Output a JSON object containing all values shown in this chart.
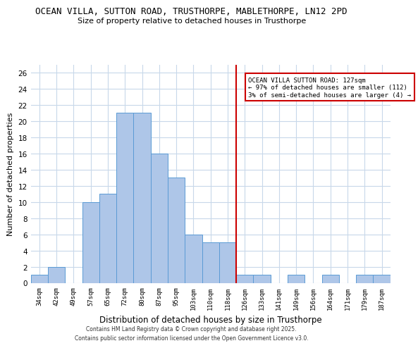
{
  "title1": "OCEAN VILLA, SUTTON ROAD, TRUSTHORPE, MABLETHORPE, LN12 2PD",
  "title2": "Size of property relative to detached houses in Trusthorpe",
  "xlabel": "Distribution of detached houses by size in Trusthorpe",
  "ylabel": "Number of detached properties",
  "bin_labels": [
    "34sqm",
    "42sqm",
    "49sqm",
    "57sqm",
    "65sqm",
    "72sqm",
    "80sqm",
    "87sqm",
    "95sqm",
    "103sqm",
    "110sqm",
    "118sqm",
    "126sqm",
    "133sqm",
    "141sqm",
    "149sqm",
    "156sqm",
    "164sqm",
    "171sqm",
    "179sqm",
    "187sqm"
  ],
  "bar_values": [
    1,
    2,
    0,
    10,
    11,
    21,
    21,
    16,
    13,
    6,
    5,
    5,
    1,
    1,
    0,
    1,
    0,
    1,
    0,
    1,
    1
  ],
  "bar_color": "#aec6e8",
  "bar_edge_color": "#5b9bd5",
  "vline_color": "#cc0000",
  "vline_x_index": 12,
  "annotation_text": "OCEAN VILLA SUTTON ROAD: 127sqm\n← 97% of detached houses are smaller (112)\n3% of semi-detached houses are larger (4) →",
  "annotation_box_color": "#ffffff",
  "annotation_box_edge": "#cc0000",
  "ylim": [
    0,
    27
  ],
  "yticks": [
    0,
    2,
    4,
    6,
    8,
    10,
    12,
    14,
    16,
    18,
    20,
    22,
    24,
    26
  ],
  "background_color": "#ffffff",
  "grid_color": "#c8d8ea",
  "footer1": "Contains HM Land Registry data © Crown copyright and database right 2025.",
  "footer2": "Contains public sector information licensed under the Open Government Licence v3.0."
}
